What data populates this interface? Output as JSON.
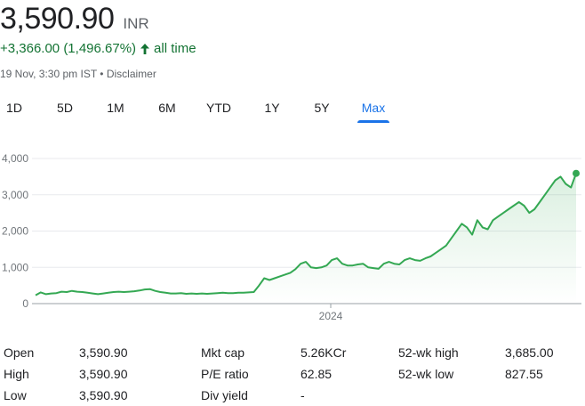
{
  "quote": {
    "price": "3,590.90",
    "currency": "INR",
    "change": "+3,366.00 (1,496.67%)",
    "period": "all time",
    "timestamp": "19 Nov, 3:30 pm IST",
    "separator": "•",
    "disclaimer": "Disclaimer"
  },
  "tabs": [
    {
      "label": "1D",
      "active": false
    },
    {
      "label": "5D",
      "active": false
    },
    {
      "label": "1M",
      "active": false
    },
    {
      "label": "6M",
      "active": false
    },
    {
      "label": "YTD",
      "active": false
    },
    {
      "label": "1Y",
      "active": false
    },
    {
      "label": "5Y",
      "active": false
    },
    {
      "label": "Max",
      "active": true
    }
  ],
  "colors": {
    "line": "#34a853",
    "positive_text": "#137333",
    "active_tab": "#1a73e8",
    "grid": "#e8eaed"
  },
  "chart_data": {
    "type": "area",
    "y_ticks": [
      "4,000",
      "3,000",
      "2,000",
      "1,000",
      "0"
    ],
    "y_tick_values": [
      4000,
      3000,
      2000,
      1000,
      0
    ],
    "ylim": [
      0,
      4000
    ],
    "x_ticks": [
      "2024"
    ],
    "grid": true,
    "series": [
      {
        "values": [
          230,
          310,
          260,
          280,
          290,
          330,
          320,
          350,
          330,
          320,
          300,
          280,
          260,
          280,
          300,
          320,
          330,
          320,
          330,
          340,
          360,
          390,
          400,
          350,
          320,
          300,
          280,
          280,
          290,
          270,
          280,
          270,
          280,
          270,
          280,
          290,
          300,
          290,
          290,
          300,
          300,
          310,
          320,
          500,
          700,
          650,
          700,
          750,
          800,
          850,
          950,
          1100,
          1150,
          1000,
          980,
          1000,
          1050,
          1200,
          1250,
          1100,
          1050,
          1050,
          1080,
          1100,
          1000,
          980,
          960,
          1100,
          1150,
          1100,
          1080,
          1200,
          1250,
          1200,
          1180,
          1250,
          1300,
          1400,
          1500,
          1600,
          1800,
          2000,
          2200,
          2100,
          1900,
          2300,
          2100,
          2050,
          2300,
          2400,
          2500,
          2600,
          2700,
          2800,
          2700,
          2500,
          2600,
          2800,
          3000,
          3200,
          3400,
          3500,
          3300,
          3200,
          3590
        ]
      }
    ]
  },
  "stats": {
    "col1": [
      {
        "label": "Open",
        "value": "3,590.90"
      },
      {
        "label": "High",
        "value": "3,590.90"
      },
      {
        "label": "Low",
        "value": "3,590.90"
      }
    ],
    "col2": [
      {
        "label": "Mkt cap",
        "value": "5.26KCr"
      },
      {
        "label": "P/E ratio",
        "value": "62.85"
      },
      {
        "label": "Div yield",
        "value": "-"
      }
    ],
    "col3": [
      {
        "label": "52-wk high",
        "value": "3,685.00"
      },
      {
        "label": "52-wk low",
        "value": "827.55"
      }
    ]
  }
}
